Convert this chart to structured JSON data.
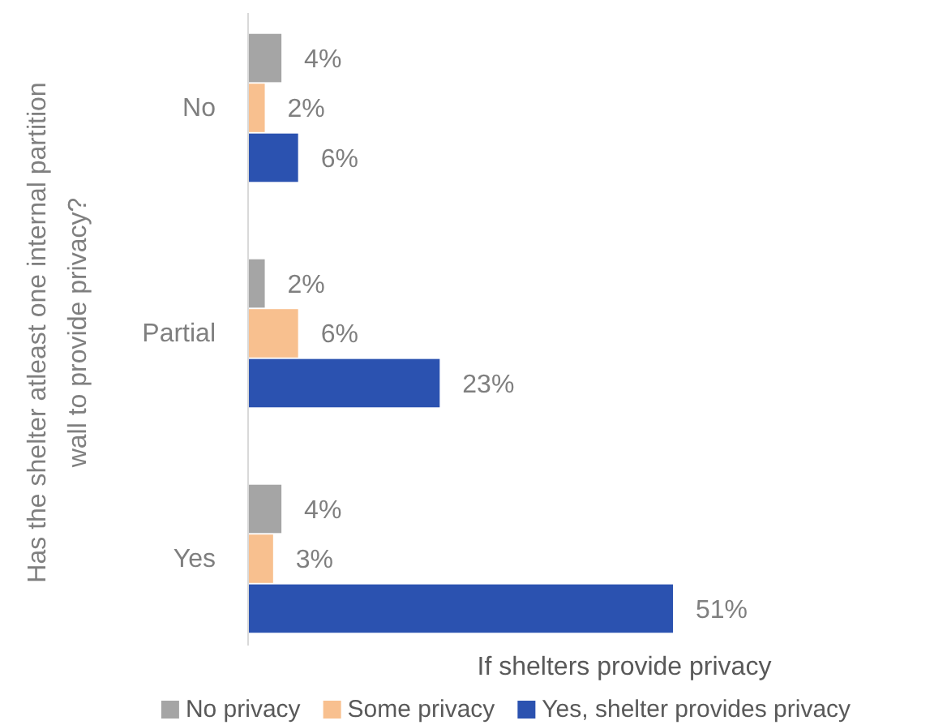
{
  "chart_data": {
    "type": "bar",
    "orientation": "horizontal",
    "xlabel": "If shelters provide privacy",
    "ylabel": "Has the shelter atleast one internal partition wall to provide privacy?",
    "categories": [
      "No",
      "Partial",
      "Yes"
    ],
    "legend": "bottom",
    "series": [
      {
        "name": "No privacy",
        "color": "#a5a5a5",
        "values": [
          4,
          2,
          4
        ],
        "value_labels": [
          "4%",
          "2%",
          "4%"
        ]
      },
      {
        "name": "Some privacy",
        "color": "#f8c08f",
        "values": [
          2,
          6,
          3
        ],
        "value_labels": [
          "2%",
          "6%",
          "3%"
        ]
      },
      {
        "name": "Yes, shelter provides privacy",
        "color": "#2b52b0",
        "values": [
          6,
          23,
          51
        ],
        "value_labels": [
          "6%",
          "23%",
          "51%"
        ]
      }
    ]
  }
}
